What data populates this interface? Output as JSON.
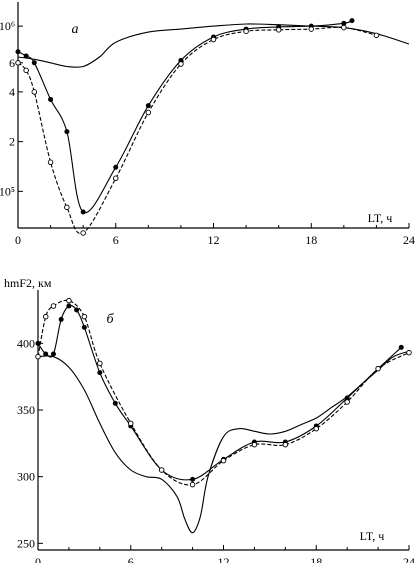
{
  "chart_data": [
    {
      "type": "line",
      "panel_label": "а",
      "xlabel": "LT, ч",
      "ylabel": "",
      "x_ticks": [
        "0",
        "6",
        "12",
        "18",
        "24"
      ],
      "y_ticks": [
        "10⁵",
        "2",
        "4",
        "6",
        "10⁶"
      ],
      "y_scale": "log",
      "xlim": [
        0,
        24
      ],
      "ylim": [
        60000,
        1400000
      ],
      "grid": false,
      "series": [
        {
          "style": "solid-no-markers",
          "x": [
            0,
            1,
            2,
            3,
            4,
            5,
            6,
            8,
            10,
            12,
            14,
            16,
            18,
            20,
            22,
            24
          ],
          "y": [
            650000,
            630000,
            600000,
            570000,
            570000,
            650000,
            800000,
            920000,
            960000,
            1000000,
            1030000,
            1020000,
            1000000,
            980000,
            900000,
            780000
          ]
        },
        {
          "style": "solid-filled-dots",
          "x": [
            0,
            0.5,
            1,
            2,
            3,
            4,
            6,
            8,
            10,
            12,
            14,
            16,
            18,
            20,
            20.5
          ],
          "y": [
            700000,
            660000,
            600000,
            360000,
            230000,
            75000,
            140000,
            330000,
            620000,
            860000,
            960000,
            990000,
            1000000,
            1040000,
            1080000
          ]
        },
        {
          "style": "dashed-open-circles",
          "x": [
            0,
            0.5,
            1,
            2,
            3,
            4,
            6,
            8,
            10,
            12,
            14,
            16,
            18,
            20,
            22
          ],
          "y": [
            600000,
            540000,
            400000,
            150000,
            80000,
            56000,
            120000,
            300000,
            590000,
            830000,
            930000,
            950000,
            960000,
            980000,
            880000
          ]
        }
      ]
    },
    {
      "type": "line",
      "panel_label": "б",
      "ylabel": "hmF2, км",
      "xlabel": "LT, ч",
      "x_ticks": [
        "0",
        "6",
        "12",
        "18",
        "24"
      ],
      "y_ticks": [
        "250",
        "300",
        "350",
        "400"
      ],
      "xlim": [
        0,
        24
      ],
      "ylim": [
        245,
        440
      ],
      "grid": false,
      "series": [
        {
          "style": "solid-no-markers",
          "x": [
            0,
            1,
            2,
            3,
            4,
            5,
            6,
            7,
            8,
            9,
            9.5,
            10,
            10.5,
            11,
            12,
            13,
            14,
            15,
            16,
            17,
            18,
            19,
            20,
            21,
            22,
            23,
            24
          ],
          "y": [
            390,
            390,
            382,
            365,
            340,
            318,
            305,
            300,
            298,
            285,
            268,
            258,
            270,
            300,
            330,
            336,
            334,
            332,
            334,
            339,
            344,
            352,
            360,
            370,
            380,
            390,
            394
          ]
        },
        {
          "style": "solid-filled-dots",
          "x": [
            0,
            0.5,
            1,
            1.5,
            2,
            2.5,
            3,
            4,
            5,
            6,
            8,
            10,
            12,
            14,
            16,
            18,
            20,
            22,
            23.5
          ],
          "y": [
            400,
            392,
            392,
            418,
            428,
            425,
            412,
            378,
            355,
            338,
            305,
            298,
            313,
            326,
            326,
            338,
            359,
            381,
            397
          ]
        },
        {
          "style": "dashed-open-circles",
          "x": [
            0,
            0.5,
            1,
            2,
            3,
            4,
            6,
            8,
            10,
            12,
            14,
            16,
            18,
            20,
            22,
            24
          ],
          "y": [
            390,
            420,
            428,
            432,
            420,
            385,
            340,
            305,
            294,
            312,
            324,
            324,
            336,
            356,
            381,
            393
          ]
        }
      ]
    }
  ]
}
